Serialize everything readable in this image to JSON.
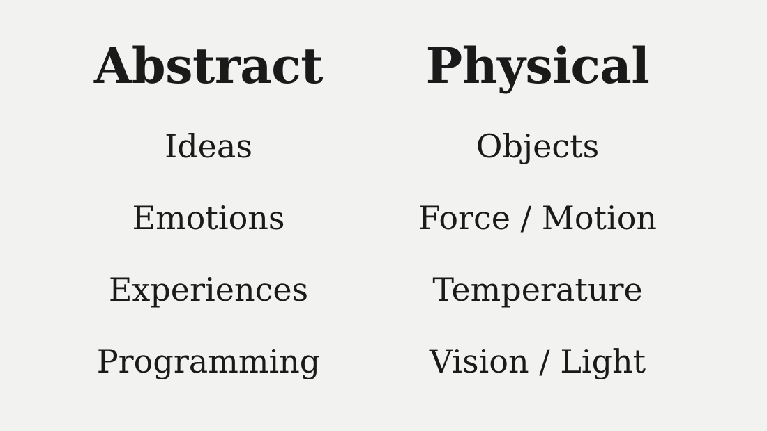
{
  "columns": [
    {
      "heading": "Abstract",
      "items": [
        "Ideas",
        "Emotions",
        "Experiences",
        "Programming"
      ]
    },
    {
      "heading": "Physical",
      "items": [
        "Objects",
        "Force / Motion",
        "Temperature",
        "Vision / Light"
      ]
    }
  ],
  "colors": {
    "background": "#f2f2f0",
    "text": "#1a1a1a"
  }
}
